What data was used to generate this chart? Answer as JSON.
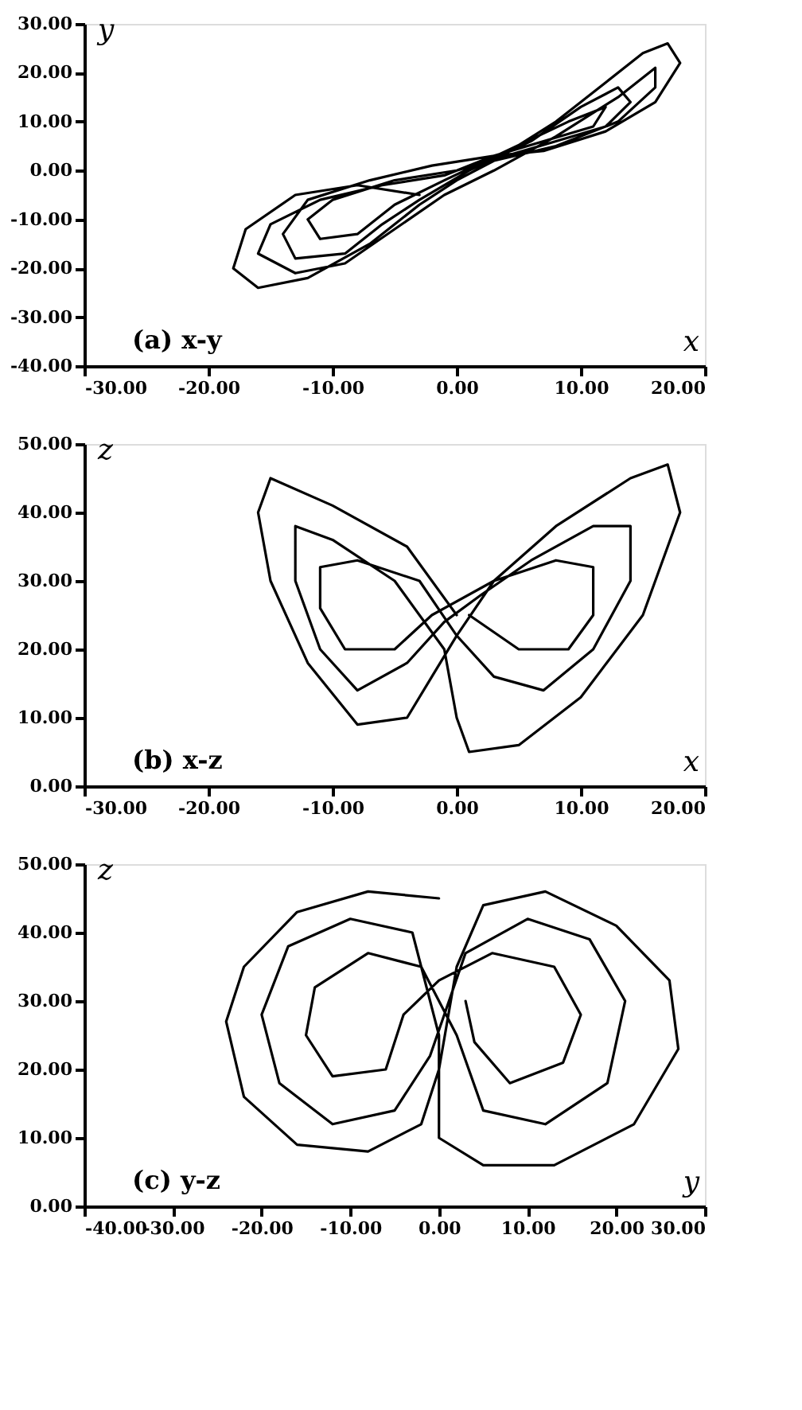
{
  "chart_data": [
    {
      "type": "line",
      "xlabel": "x",
      "ylabel": "y",
      "annotations": [
        "(a)  x-y"
      ],
      "grid": false,
      "marker": "none",
      "line_style": "solid",
      "xlim": [
        -30,
        20
      ],
      "ylim": [
        -40,
        30
      ],
      "xticks": [
        {
          "value": -30,
          "label": "-30.00"
        },
        {
          "value": -20,
          "label": "-20.00"
        },
        {
          "value": -10,
          "label": "-10.00"
        },
        {
          "value": 0,
          "label": "0.00"
        },
        {
          "value": 10,
          "label": "10.00"
        },
        {
          "value": 20,
          "label": "20.00"
        }
      ],
      "yticks": [
        {
          "value": -40,
          "label": "-40.00"
        },
        {
          "value": -30,
          "label": "-30.00"
        },
        {
          "value": -20,
          "label": "-20.00"
        },
        {
          "value": -10,
          "label": "-10.00"
        },
        {
          "value": 0,
          "label": "0.00"
        },
        {
          "value": 10,
          "label": "10.00"
        },
        {
          "value": 20,
          "label": "20.00"
        },
        {
          "value": 30,
          "label": "30.00"
        }
      ],
      "series": [
        {
          "color": "#000000",
          "x": [
            -3,
            -8,
            -13,
            -17,
            -18,
            -16,
            -12,
            -7,
            -3,
            0,
            3,
            8,
            12,
            15,
            17,
            18,
            16,
            12,
            7,
            3,
            -2,
            -7,
            -12,
            -14,
            -13,
            -9,
            -6,
            -3,
            1,
            6,
            10,
            13,
            14,
            12,
            8,
            4,
            0,
            -5,
            -10,
            -12,
            -11,
            -8,
            -5,
            -1,
            4,
            9,
            12,
            11,
            7,
            3,
            -1,
            -6,
            -11,
            -15,
            -16,
            -13,
            -9,
            -5,
            -1,
            3,
            8,
            13,
            16,
            16,
            13,
            8,
            3
          ],
          "values": [
            -5,
            -3,
            -5,
            -12,
            -20,
            -24,
            -22,
            -15,
            -7,
            -2,
            2,
            10,
            18,
            24,
            26,
            22,
            14,
            8,
            4,
            3,
            1,
            -2,
            -6,
            -13,
            -18,
            -17,
            -11,
            -6,
            0,
            6,
            13,
            17,
            14,
            9,
            6,
            3,
            0,
            -2,
            -6,
            -10,
            -14,
            -13,
            -7,
            -2,
            4,
            10,
            13,
            9,
            6,
            3,
            -1,
            -3,
            -6,
            -11,
            -17,
            -21,
            -19,
            -12,
            -5,
            0,
            7,
            15,
            21,
            17,
            10,
            5,
            2
          ]
        }
      ]
    },
    {
      "type": "line",
      "xlabel": "x",
      "ylabel": "z",
      "annotations": [
        "(b)  x-z"
      ],
      "grid": false,
      "marker": "none",
      "line_style": "solid",
      "xlim": [
        -30,
        20
      ],
      "ylim": [
        0,
        50
      ],
      "xticks": [
        {
          "value": -30,
          "label": "-30.00"
        },
        {
          "value": -20,
          "label": "-20.00"
        },
        {
          "value": -10,
          "label": "-10.00"
        },
        {
          "value": 0,
          "label": "0.00"
        },
        {
          "value": 10,
          "label": "10.00"
        },
        {
          "value": 20,
          "label": "20.00"
        }
      ],
      "yticks": [
        {
          "value": 0,
          "label": "0.00"
        },
        {
          "value": 10,
          "label": "10.00"
        },
        {
          "value": 20,
          "label": "20.00"
        },
        {
          "value": 30,
          "label": "30.00"
        },
        {
          "value": 40,
          "label": "40.00"
        },
        {
          "value": 50,
          "label": "50.00"
        }
      ],
      "series": [
        {
          "color": "#000000",
          "x": [
            0,
            -4,
            -10,
            -15,
            -16,
            -15,
            -12,
            -8,
            -4,
            -2,
            0,
            3,
            8,
            14,
            17,
            18,
            15,
            10,
            5,
            1,
            0,
            -1,
            -5,
            -10,
            -13,
            -13,
            -11,
            -8,
            -4,
            -1,
            2,
            6,
            11,
            14,
            14,
            11,
            7,
            3,
            0,
            -3,
            -8,
            -11,
            -11,
            -9,
            -5,
            -2,
            3,
            8,
            11,
            11,
            9,
            5,
            1
          ],
          "values": [
            25,
            35,
            41,
            45,
            40,
            30,
            18,
            9,
            10,
            16,
            22,
            30,
            38,
            45,
            47,
            40,
            25,
            13,
            6,
            5,
            10,
            20,
            30,
            36,
            38,
            30,
            20,
            14,
            18,
            24,
            28,
            33,
            38,
            38,
            30,
            20,
            14,
            16,
            22,
            30,
            33,
            32,
            26,
            20,
            20,
            25,
            30,
            33,
            32,
            25,
            20,
            20,
            25
          ]
        }
      ]
    },
    {
      "type": "line",
      "xlabel": "y",
      "ylabel": "z",
      "annotations": [
        "(c)  y-z"
      ],
      "grid": false,
      "marker": "none",
      "line_style": "solid",
      "xlim": [
        -40,
        30
      ],
      "ylim": [
        0,
        50
      ],
      "xticks": [
        {
          "value": -40,
          "label": "-40.00"
        },
        {
          "value": -30,
          "label": "-30.00"
        },
        {
          "value": -20,
          "label": "-20.00"
        },
        {
          "value": -10,
          "label": "-10.00"
        },
        {
          "value": 0,
          "label": "0.00"
        },
        {
          "value": 10,
          "label": "10.00"
        },
        {
          "value": 20,
          "label": "20.00"
        },
        {
          "value": 30,
          "label": "30.00"
        }
      ],
      "yticks": [
        {
          "value": 0,
          "label": "0.00"
        },
        {
          "value": 10,
          "label": "10.00"
        },
        {
          "value": 20,
          "label": "20.00"
        },
        {
          "value": 30,
          "label": "30.00"
        },
        {
          "value": 40,
          "label": "40.00"
        },
        {
          "value": 50,
          "label": "50.00"
        }
      ],
      "series": [
        {
          "color": "#000000",
          "x": [
            0,
            -8,
            -16,
            -22,
            -24,
            -22,
            -16,
            -8,
            -2,
            0,
            2,
            5,
            12,
            20,
            26,
            27,
            22,
            13,
            5,
            0,
            0,
            -3,
            -10,
            -17,
            -20,
            -18,
            -12,
            -5,
            -1,
            3,
            10,
            17,
            21,
            19,
            12,
            5,
            2,
            -2,
            -8,
            -14,
            -15,
            -12,
            -6,
            -4,
            0,
            6,
            13,
            16,
            14,
            8,
            4,
            3
          ],
          "values": [
            45,
            46,
            43,
            35,
            27,
            16,
            9,
            8,
            12,
            20,
            35,
            44,
            46,
            41,
            33,
            23,
            12,
            6,
            6,
            10,
            25,
            40,
            42,
            38,
            28,
            18,
            12,
            14,
            22,
            37,
            42,
            39,
            30,
            18,
            12,
            14,
            25,
            35,
            37,
            32,
            25,
            19,
            20,
            28,
            33,
            37,
            35,
            28,
            21,
            18,
            24,
            30
          ]
        }
      ]
    }
  ]
}
